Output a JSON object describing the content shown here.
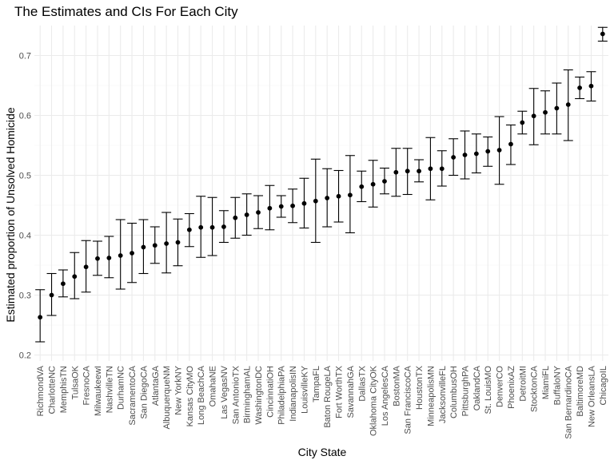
{
  "chart_data": {
    "type": "scatter",
    "title": "The Estimates and CIs For Each City",
    "xlabel": "City State",
    "ylabel": "Estimated proportion of Unsolved Homicide",
    "ylim": [
      0.19,
      0.75
    ],
    "yticks": [
      0.2,
      0.3,
      0.4,
      0.5,
      0.6,
      0.7
    ],
    "ytick_labels": [
      "0.2",
      "0.3",
      "0.4",
      "0.5",
      "0.6",
      "0.7"
    ],
    "grid": true,
    "legend": "none",
    "point_color": "#000000",
    "categories": [
      "RichmondVA",
      "CharlotteNC",
      "MemphisTN",
      "TulsaOK",
      "FresnoCA",
      "MilwaukeewI",
      "NashvilleTN",
      "DurhamNC",
      "SacramentoCA",
      "San DiegoCA",
      "AtlantaGA",
      "AlbuquerqueNM",
      "New YorkNY",
      "Kansas CityMO",
      "Long BeachCA",
      "OmahaNE",
      "Las VegasNV",
      "San AntonioTX",
      "BirminghamAL",
      "WashingtonDC",
      "CincinnatiOH",
      "PhiladelphiaPA",
      "IndianapolisIN",
      "LouisvilleKY",
      "TampaFL",
      "Baton RougeLA",
      "Fort WorthTX",
      "SavannahGA",
      "DallasTX",
      "Oklahoma CityOK",
      "Los AngelesCA",
      "BostonMA",
      "San FranciscoCA",
      "HoustonTX",
      "MinneapolisMN",
      "JacksonvilleFL",
      "ColumbusOH",
      "PittsburghPA",
      "OaklandCA",
      "St. LouisMO",
      "DenverCO",
      "PhoenixAZ",
      "DetroitMI",
      "StocktonCA",
      "MiamiFL",
      "BuffaloNY",
      "San BernardinoCA",
      "BaltimoreMD",
      "New OrleansLA",
      "ChicagoIL"
    ],
    "series": [
      {
        "estimate": [
          0.263,
          0.3,
          0.319,
          0.331,
          0.347,
          0.361,
          0.362,
          0.366,
          0.37,
          0.38,
          0.383,
          0.386,
          0.388,
          0.409,
          0.413,
          0.413,
          0.414,
          0.429,
          0.434,
          0.438,
          0.445,
          0.448,
          0.449,
          0.453,
          0.457,
          0.462,
          0.465,
          0.467,
          0.481,
          0.485,
          0.49,
          0.505,
          0.507,
          0.507,
          0.511,
          0.511,
          0.53,
          0.534,
          0.536,
          0.54,
          0.542,
          0.552,
          0.588,
          0.599,
          0.605,
          0.612,
          0.618,
          0.646,
          0.649,
          0.736
        ],
        "ci_low": [
          0.222,
          0.266,
          0.297,
          0.294,
          0.305,
          0.333,
          0.329,
          0.31,
          0.321,
          0.336,
          0.353,
          0.337,
          0.349,
          0.381,
          0.363,
          0.366,
          0.388,
          0.395,
          0.4,
          0.411,
          0.409,
          0.43,
          0.421,
          0.412,
          0.388,
          0.414,
          0.422,
          0.404,
          0.456,
          0.447,
          0.469,
          0.465,
          0.468,
          0.489,
          0.459,
          0.482,
          0.5,
          0.494,
          0.504,
          0.515,
          0.485,
          0.518,
          0.569,
          0.551,
          0.569,
          0.569,
          0.558,
          0.628,
          0.624,
          0.724
        ],
        "ci_high": [
          0.309,
          0.336,
          0.342,
          0.371,
          0.391,
          0.39,
          0.398,
          0.426,
          0.42,
          0.426,
          0.414,
          0.438,
          0.427,
          0.436,
          0.465,
          0.463,
          0.441,
          0.463,
          0.469,
          0.466,
          0.483,
          0.466,
          0.477,
          0.495,
          0.527,
          0.511,
          0.508,
          0.533,
          0.507,
          0.525,
          0.512,
          0.545,
          0.545,
          0.526,
          0.563,
          0.541,
          0.561,
          0.574,
          0.569,
          0.564,
          0.598,
          0.584,
          0.607,
          0.645,
          0.641,
          0.654,
          0.676,
          0.664,
          0.673,
          0.747
        ]
      }
    ]
  }
}
